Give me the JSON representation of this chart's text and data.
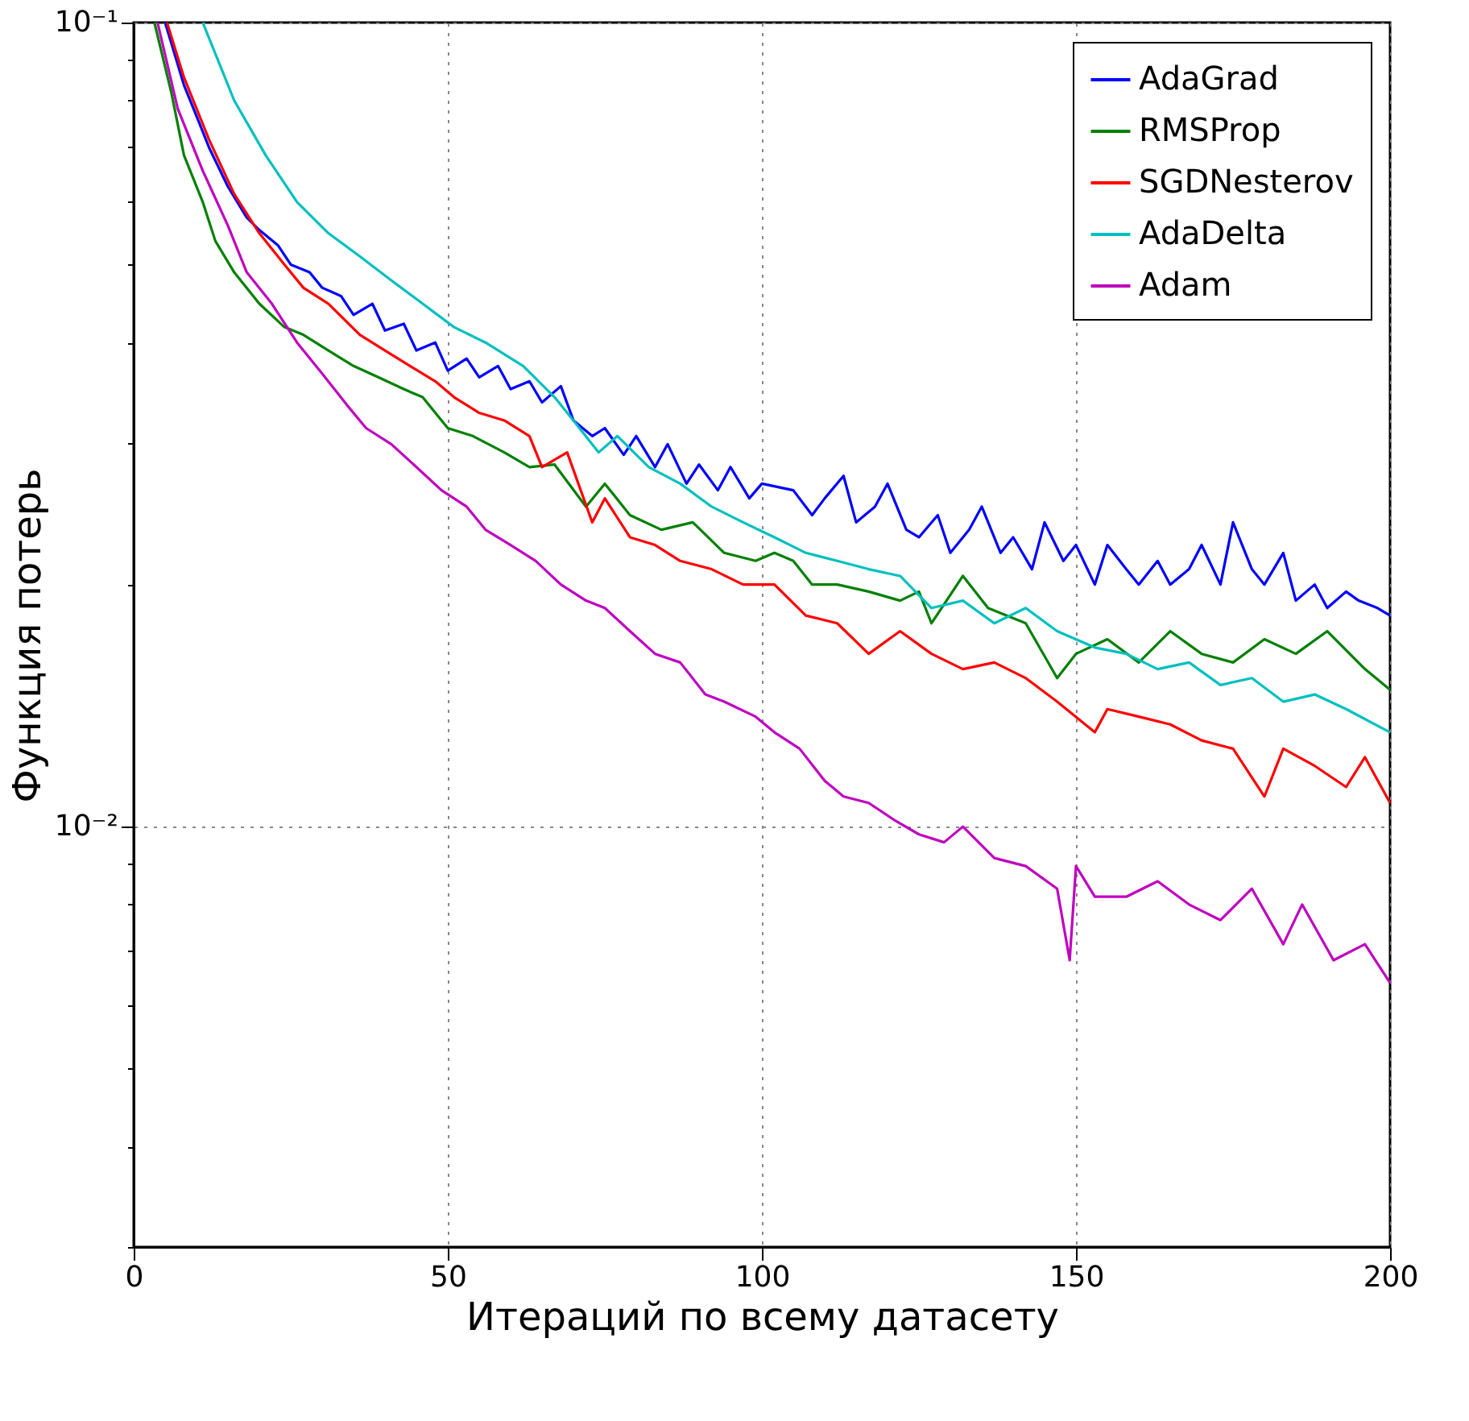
{
  "chart_data": {
    "type": "line",
    "xlabel": "Итераций по всему датасету",
    "ylabel": "Функция потерь",
    "xlim": [
      0,
      200
    ],
    "xticks": [
      0,
      50,
      100,
      150,
      200
    ],
    "ylim": [
      0.003,
      0.1
    ],
    "log": true,
    "yticks": [
      {
        "value": 0.003,
        "label": null
      },
      {
        "value": 0.004,
        "label": null
      },
      {
        "value": 0.005,
        "label": null
      },
      {
        "value": 0.006,
        "label": null
      },
      {
        "value": 0.007,
        "label": null
      },
      {
        "value": 0.008,
        "label": null
      },
      {
        "value": 0.009,
        "label": null
      },
      {
        "value": 0.01,
        "label": "10⁻²"
      },
      {
        "value": 0.02,
        "label": null
      },
      {
        "value": 0.03,
        "label": null
      },
      {
        "value": 0.04,
        "label": null
      },
      {
        "value": 0.05,
        "label": null
      },
      {
        "value": 0.06,
        "label": null
      },
      {
        "value": 0.07,
        "label": null
      },
      {
        "value": 0.08,
        "label": null
      },
      {
        "value": 0.09,
        "label": null
      },
      {
        "value": 0.1,
        "label": "10⁻¹"
      }
    ],
    "grid": true,
    "legend": "top right",
    "marker": "none",
    "line_style": "solid",
    "series": [
      {
        "name": "AdaGrad",
        "color": "#0000ff",
        "x": [
          5,
          8,
          10,
          12,
          15,
          18,
          20,
          23,
          25,
          28,
          30,
          33,
          35,
          38,
          40,
          43,
          45,
          48,
          50,
          53,
          55,
          58,
          60,
          63,
          65,
          68,
          70,
          73,
          75,
          78,
          80,
          83,
          85,
          88,
          90,
          93,
          95,
          98,
          100,
          105,
          108,
          110,
          113,
          115,
          118,
          120,
          123,
          125,
          128,
          130,
          133,
          135,
          138,
          140,
          143,
          145,
          148,
          150,
          153,
          155,
          158,
          160,
          163,
          165,
          168,
          170,
          173,
          175,
          178,
          180,
          183,
          185,
          188,
          190,
          193,
          195,
          198,
          200
        ],
        "values": [
          0.1,
          0.0836,
          0.0765,
          0.0699,
          0.0625,
          0.0572,
          0.0552,
          0.0528,
          0.05,
          0.0489,
          0.0468,
          0.0457,
          0.0433,
          0.0447,
          0.0414,
          0.0422,
          0.0391,
          0.04,
          0.0369,
          0.0382,
          0.0362,
          0.0374,
          0.035,
          0.0358,
          0.0337,
          0.0353,
          0.032,
          0.0306,
          0.0313,
          0.029,
          0.0306,
          0.028,
          0.0299,
          0.0267,
          0.0282,
          0.0262,
          0.028,
          0.0256,
          0.0267,
          0.0262,
          0.0244,
          0.0256,
          0.0273,
          0.0239,
          0.025,
          0.0267,
          0.0234,
          0.0229,
          0.0244,
          0.0219,
          0.0234,
          0.025,
          0.0219,
          0.0229,
          0.0209,
          0.0239,
          0.0214,
          0.0224,
          0.02,
          0.0224,
          0.0209,
          0.02,
          0.0214,
          0.02,
          0.0209,
          0.0224,
          0.02,
          0.0239,
          0.0209,
          0.02,
          0.0219,
          0.0191,
          0.02,
          0.0187,
          0.0196,
          0.0191,
          0.0187,
          0.0183
        ]
      },
      {
        "name": "RMSProp",
        "color": "#008000",
        "x": [
          3.3,
          6,
          8,
          11,
          13,
          16,
          20,
          24,
          27,
          31,
          35,
          39,
          43,
          46,
          50,
          54,
          59,
          63,
          67,
          72,
          75,
          79,
          84,
          89,
          94,
          99,
          102,
          105,
          108,
          112,
          117,
          122,
          125,
          127,
          132,
          136,
          142,
          147,
          150,
          155,
          160,
          165,
          170,
          175,
          180,
          185,
          190,
          196,
          200
        ],
        "values": [
          0.1,
          0.0818,
          0.0684,
          0.0598,
          0.0535,
          0.0489,
          0.0447,
          0.0418,
          0.0409,
          0.0391,
          0.0374,
          0.0362,
          0.035,
          0.0342,
          0.0313,
          0.0306,
          0.0292,
          0.028,
          0.0282,
          0.025,
          0.0267,
          0.0244,
          0.0234,
          0.0239,
          0.0219,
          0.0214,
          0.0219,
          0.0214,
          0.02,
          0.02,
          0.0196,
          0.0191,
          0.0196,
          0.0179,
          0.0205,
          0.0187,
          0.0179,
          0.0153,
          0.0164,
          0.0171,
          0.016,
          0.0175,
          0.0164,
          0.016,
          0.0171,
          0.0164,
          0.0175,
          0.0157,
          0.0148
        ]
      },
      {
        "name": "SGDNesterov",
        "color": "#ff0000",
        "x": [
          5.3,
          8,
          12,
          16,
          20,
          24,
          27,
          31,
          36,
          40,
          44,
          48,
          51,
          55,
          59,
          63,
          65,
          69,
          73,
          75,
          79,
          83,
          87,
          92,
          97,
          102,
          107,
          112,
          117,
          122,
          127,
          132,
          137,
          142,
          147,
          153,
          155,
          160,
          165,
          170,
          175,
          180,
          183,
          188,
          193,
          196,
          200
        ],
        "values": [
          0.1,
          0.0855,
          0.0715,
          0.0612,
          0.0547,
          0.05,
          0.0468,
          0.0447,
          0.0409,
          0.0391,
          0.0374,
          0.0358,
          0.0342,
          0.0327,
          0.032,
          0.0306,
          0.028,
          0.0292,
          0.0239,
          0.0256,
          0.0229,
          0.0224,
          0.0214,
          0.0209,
          0.02,
          0.02,
          0.0183,
          0.0179,
          0.0164,
          0.0175,
          0.0164,
          0.0157,
          0.016,
          0.0153,
          0.0143,
          0.0131,
          0.014,
          0.0137,
          0.0134,
          0.0128,
          0.0125,
          0.0109,
          0.0125,
          0.0119,
          0.0112,
          0.0122,
          0.0107
        ]
      },
      {
        "name": "AdaDelta",
        "color": "#00bfbf",
        "x": [
          11,
          16,
          21,
          26,
          31,
          36,
          41,
          46,
          51,
          56,
          62,
          67,
          70,
          74,
          77,
          82,
          87,
          92,
          97,
          102,
          107,
          112,
          117,
          122,
          127,
          132,
          137,
          142,
          147,
          153,
          158,
          163,
          168,
          173,
          178,
          183,
          188,
          193,
          200
        ],
        "values": [
          0.1,
          0.08,
          0.0684,
          0.0598,
          0.0547,
          0.0512,
          0.0478,
          0.0447,
          0.0418,
          0.04,
          0.0374,
          0.0342,
          0.032,
          0.0292,
          0.0306,
          0.028,
          0.0267,
          0.025,
          0.0239,
          0.0229,
          0.0219,
          0.0214,
          0.0209,
          0.0205,
          0.0187,
          0.0191,
          0.0179,
          0.0187,
          0.0175,
          0.0167,
          0.0164,
          0.0157,
          0.016,
          0.015,
          0.0153,
          0.0143,
          0.0146,
          0.014,
          0.0131
        ]
      },
      {
        "name": "Adam",
        "color": "#bf00bf",
        "x": [
          3.8,
          7,
          11,
          15,
          18,
          22,
          26,
          30,
          34,
          37,
          41,
          45,
          49,
          53,
          56,
          60,
          64,
          68,
          72,
          75,
          79,
          83,
          87,
          91,
          94,
          99,
          102,
          106,
          110,
          113,
          117,
          121,
          125,
          129,
          132,
          137,
          142,
          147,
          149,
          150,
          153,
          158,
          163,
          168,
          173,
          178,
          183,
          186,
          191,
          196,
          200
        ],
        "values": [
          0.1,
          0.0782,
          0.0654,
          0.0559,
          0.0489,
          0.0447,
          0.04,
          0.0366,
          0.0334,
          0.0313,
          0.0299,
          0.028,
          0.0262,
          0.025,
          0.0234,
          0.0224,
          0.0214,
          0.02,
          0.0191,
          0.0187,
          0.0175,
          0.0164,
          0.016,
          0.0146,
          0.0143,
          0.0137,
          0.0131,
          0.0125,
          0.0114,
          0.0109,
          0.0107,
          0.0102,
          0.00978,
          0.00956,
          0.01,
          0.00914,
          0.00893,
          0.00837,
          0.00682,
          0.00893,
          0.00818,
          0.00818,
          0.00855,
          0.008,
          0.00765,
          0.00837,
          0.00714,
          0.008,
          0.00682,
          0.00714,
          0.00639
        ]
      }
    ]
  }
}
